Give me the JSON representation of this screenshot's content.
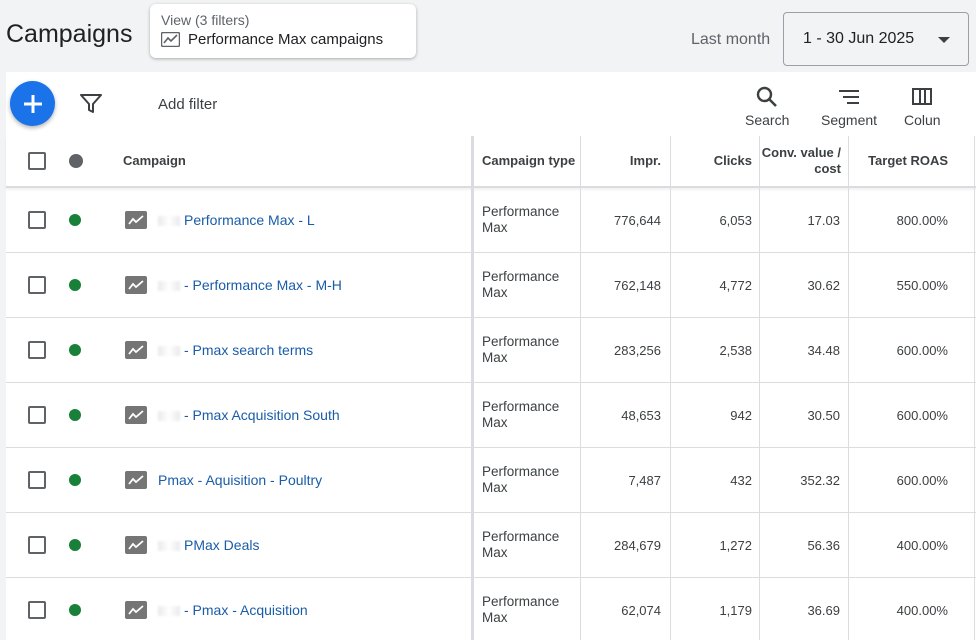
{
  "header": {
    "title": "Campaigns",
    "view_label": "View (3 filters)",
    "view_name": "Performance Max campaigns",
    "date_prefix": "Last month",
    "date_range": "1 - 30 Jun 2025"
  },
  "toolbar": {
    "add_filter": "Add filter",
    "search": "Search",
    "segment": "Segment",
    "columns": "Colun"
  },
  "table": {
    "headers": {
      "campaign": "Campaign",
      "campaign_type": "Campaign type",
      "impr": "Impr.",
      "clicks": "Clicks",
      "conv_value_cost": "Conv. value / cost",
      "target_roas": "Target ROAS"
    },
    "rows": [
      {
        "campaign": "Performance Max - L",
        "type": "Performance Max",
        "impr": "776,644",
        "clicks": "6,053",
        "conv": "17.03",
        "roas": "800.00%"
      },
      {
        "campaign": "- Performance Max - M-H",
        "type": "Performance Max",
        "impr": "762,148",
        "clicks": "4,772",
        "conv": "30.62",
        "roas": "550.00%"
      },
      {
        "campaign": "- Pmax search terms",
        "type": "Performance Max",
        "impr": "283,256",
        "clicks": "2,538",
        "conv": "34.48",
        "roas": "600.00%"
      },
      {
        "campaign": "- Pmax Acquisition South",
        "type": "Performance Max",
        "impr": "48,653",
        "clicks": "942",
        "conv": "30.50",
        "roas": "600.00%"
      },
      {
        "campaign": "Pmax - Aquisition - Poultry",
        "type": "Performance Max",
        "impr": "7,487",
        "clicks": "432",
        "conv": "352.32",
        "roas": "600.00%"
      },
      {
        "campaign": "PMax Deals",
        "type": "Performance Max",
        "impr": "284,679",
        "clicks": "1,272",
        "conv": "56.36",
        "roas": "400.00%"
      },
      {
        "campaign": "- Pmax - Acquisition",
        "type": "Performance Max",
        "impr": "62,074",
        "clicks": "1,179",
        "conv": "36.69",
        "roas": "400.00%"
      }
    ]
  },
  "colors": {
    "accent": "#1a73e8",
    "link": "#1a5ca8",
    "enabled_status": "#188038"
  }
}
